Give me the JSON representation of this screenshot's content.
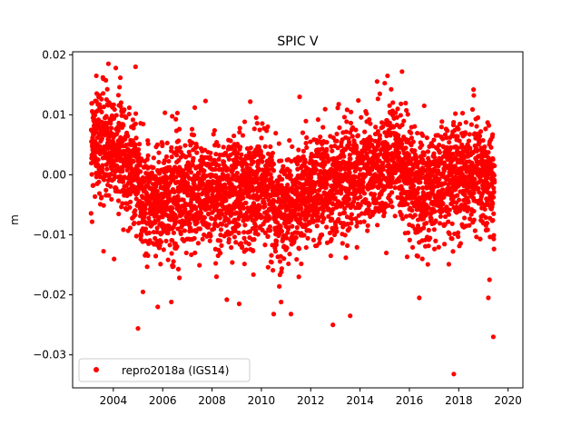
{
  "chart_data": {
    "type": "scatter",
    "title": "SPIC V",
    "xlabel": "",
    "ylabel": "m",
    "xlim": [
      2002.35,
      2020.6
    ],
    "ylim": [
      -0.0355,
      0.0205
    ],
    "xticks": [
      2004,
      2006,
      2008,
      2010,
      2012,
      2014,
      2016,
      2018,
      2020
    ],
    "xtick_labels": [
      "2004",
      "2006",
      "2008",
      "2010",
      "2012",
      "2014",
      "2016",
      "2018",
      "2020"
    ],
    "yticks": [
      0.02,
      0.01,
      0.0,
      -0.01,
      -0.02,
      -0.03
    ],
    "ytick_labels": [
      "0.02",
      "0.01",
      "0.00",
      "−0.01",
      "−0.02",
      "−0.03"
    ],
    "grid": false,
    "legend_position": "lower-left",
    "series": [
      {
        "name": "repro2018a (IGS14)",
        "color": "#ff0000",
        "marker": "circle",
        "x_range": [
          2003.1,
          2019.45
        ],
        "mean_by_year": [
          {
            "year": 2003.1,
            "mean": 0.006
          },
          {
            "year": 2004.0,
            "mean": 0.005
          },
          {
            "year": 2004.8,
            "mean": 0.001
          },
          {
            "year": 2005.2,
            "mean": -0.004
          },
          {
            "year": 2006.0,
            "mean": -0.004
          },
          {
            "year": 2008.0,
            "mean": -0.003
          },
          {
            "year": 2010.0,
            "mean": -0.002
          },
          {
            "year": 2010.8,
            "mean": -0.006
          },
          {
            "year": 2011.5,
            "mean": -0.004
          },
          {
            "year": 2012.5,
            "mean": -0.002
          },
          {
            "year": 2014.0,
            "mean": 0.0
          },
          {
            "year": 2015.5,
            "mean": 0.002
          },
          {
            "year": 2016.5,
            "mean": -0.003
          },
          {
            "year": 2017.5,
            "mean": -0.001
          },
          {
            "year": 2018.8,
            "mean": 0.0
          },
          {
            "year": 2019.45,
            "mean": -0.003
          }
        ],
        "spread": 0.0045,
        "outliers": [
          {
            "x": 2003.8,
            "y": 0.0185
          },
          {
            "x": 2004.1,
            "y": 0.0178
          },
          {
            "x": 2004.9,
            "y": 0.018
          },
          {
            "x": 2005.0,
            "y": -0.0256
          },
          {
            "x": 2005.2,
            "y": -0.0195
          },
          {
            "x": 2005.8,
            "y": -0.022
          },
          {
            "x": 2007.3,
            "y": 0.0112
          },
          {
            "x": 2008.6,
            "y": -0.0208
          },
          {
            "x": 2009.1,
            "y": -0.0215
          },
          {
            "x": 2010.5,
            "y": -0.0232
          },
          {
            "x": 2010.8,
            "y": -0.0212
          },
          {
            "x": 2011.2,
            "y": -0.0232
          },
          {
            "x": 2012.3,
            "y": 0.0092
          },
          {
            "x": 2012.9,
            "y": -0.025
          },
          {
            "x": 2013.6,
            "y": -0.0235
          },
          {
            "x": 2014.8,
            "y": 0.0135
          },
          {
            "x": 2015.7,
            "y": 0.0172
          },
          {
            "x": 2016.4,
            "y": -0.0205
          },
          {
            "x": 2016.6,
            "y": 0.0115
          },
          {
            "x": 2017.8,
            "y": -0.0332
          },
          {
            "x": 2018.6,
            "y": 0.0142
          },
          {
            "x": 2019.2,
            "y": -0.0205
          },
          {
            "x": 2019.4,
            "y": -0.027
          }
        ]
      }
    ]
  }
}
